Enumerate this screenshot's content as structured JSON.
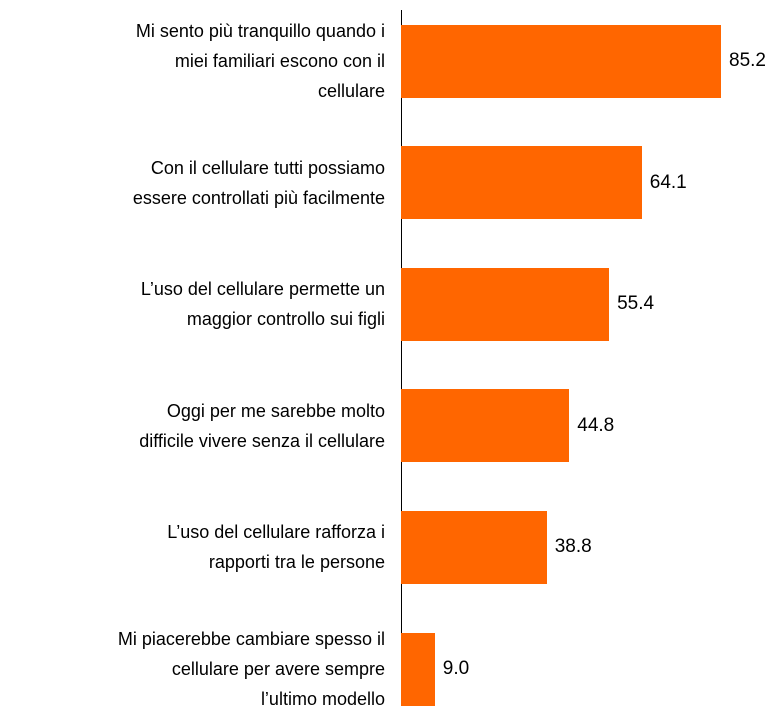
{
  "chart_data": {
    "type": "bar",
    "orientation": "horizontal",
    "categories": [
      "Mi sento più tranquillo quando i\nmiei familiari escono con il\ncellulare",
      "Con il cellulare tutti possiamo\nessere controllati più facilmente",
      "L’uso del cellulare permette un\nmaggior controllo sui figli",
      "Oggi per me sarebbe molto\ndifficile vivere senza il cellulare",
      "L’uso del cellulare rafforza i\nrapporti tra le persone",
      "Mi piacerebbe cambiare spesso il\ncellulare per avere sempre\nl’ultimo modello"
    ],
    "values": [
      85.2,
      64.1,
      55.4,
      44.8,
      38.8,
      9.0
    ],
    "value_labels": [
      "85.2",
      "64.1",
      "55.4",
      "44.8",
      "38.8",
      "9.0"
    ],
    "color": "#ff6600"
  }
}
